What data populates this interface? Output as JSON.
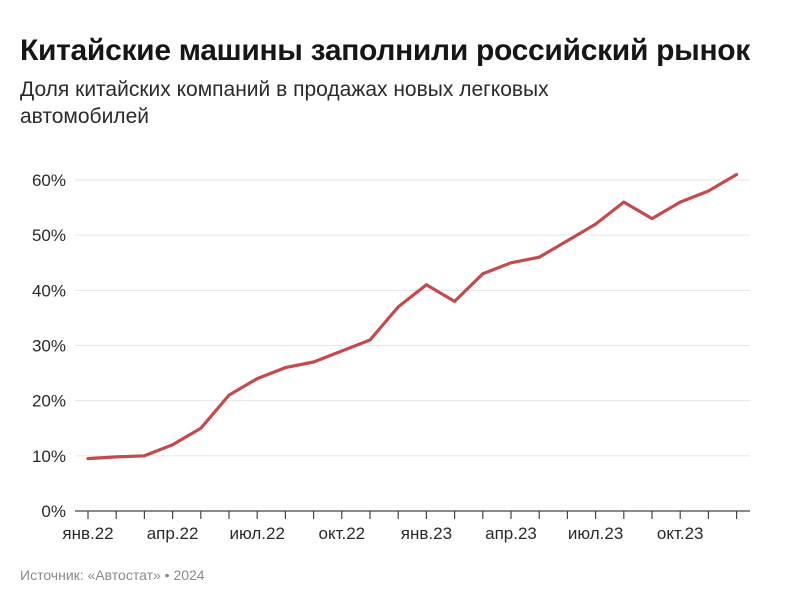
{
  "title": "Китайские машины заполнили российский рынок",
  "subtitle": "Доля китайских компаний в продажах новых легковых автомобилей",
  "source": "Источник: «Автостат» • 2024",
  "colors": {
    "line": "#c44b4b",
    "grid": "#e6e6e6",
    "axis": "#444444"
  },
  "chart_data": {
    "type": "line",
    "title": "Китайские машины заполнили российский рынок",
    "subtitle": "Доля китайских компаний в продажах новых легковых автомобилей",
    "xlabel": "",
    "ylabel": "",
    "ylim": [
      0,
      60
    ],
    "yticks": [
      0,
      10,
      20,
      30,
      40,
      50,
      60
    ],
    "ytick_labels": [
      "0%",
      "10%",
      "20%",
      "30%",
      "40%",
      "50%",
      "60%"
    ],
    "xtick_labels": [
      "янв.22",
      "апр.22",
      "июл.22",
      "окт.22",
      "янв.23",
      "апр.23",
      "июл.23",
      "окт.23"
    ],
    "x": [
      "янв.22",
      "фев.22",
      "мар.22",
      "апр.22",
      "май.22",
      "июн.22",
      "июл.22",
      "авг.22",
      "сен.22",
      "окт.22",
      "ноя.22",
      "дек.22",
      "янв.23",
      "фев.23",
      "мар.23",
      "апр.23",
      "май.23",
      "июн.23",
      "июл.23",
      "авг.23",
      "сен.23",
      "окт.23",
      "ноя.23",
      "дек.23"
    ],
    "grid": true,
    "series": [
      {
        "values": [
          9.5,
          9.8,
          10,
          12,
          15,
          21,
          24,
          26,
          27,
          29,
          31,
          37,
          41,
          38,
          43,
          45,
          46,
          49,
          52,
          56,
          53,
          56,
          58,
          61
        ]
      }
    ]
  }
}
